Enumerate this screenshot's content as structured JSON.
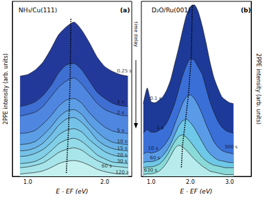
{
  "chart_data": [
    {
      "type": "line",
      "title": "NH₃/Cu(111)",
      "panel": "(a)",
      "x_label": "E - EF (eV)",
      "y_label": "2PPE intensity (arb. units)",
      "xlim": [
        0.8,
        2.35
      ],
      "xticks": [
        {
          "value": 1,
          "label": "1.0"
        },
        {
          "value": 2,
          "label": "2.0"
        }
      ],
      "ylim": [
        0,
        110
      ],
      "tick_labels": "x",
      "grid": false,
      "x": [
        0.9,
        1.0,
        1.1,
        1.2,
        1.3,
        1.4,
        1.5,
        1.6,
        1.7,
        1.8,
        1.9,
        2.0,
        2.1,
        2.2,
        2.3
      ],
      "series": [
        {
          "name": "0.25 s",
          "color": "#23399a",
          "values": [
            63,
            64,
            67,
            72,
            80,
            89,
            94,
            97,
            92,
            84,
            75,
            69,
            66,
            64,
            63
          ],
          "label_at": [
            2.15,
            66
          ]
        },
        {
          "name": "1 s",
          "color": "#3f6fd2",
          "values": [
            44,
            45,
            47,
            51,
            57,
            65,
            70,
            71,
            67,
            60,
            53,
            49,
            46,
            44.5,
            44
          ],
          "label_at": [
            2.15,
            47
          ]
        },
        {
          "name": "2 s",
          "color": "#4f86e0",
          "values": [
            38,
            39,
            40.5,
            44,
            50,
            56,
            60,
            62,
            58,
            52,
            46,
            42,
            40,
            38.5,
            38
          ],
          "label_at": [
            2.15,
            40
          ]
        },
        {
          "name": "5 s",
          "color": "#5c9ee6",
          "values": [
            27,
            27.5,
            29,
            33,
            38,
            44,
            48,
            49,
            46,
            40,
            35,
            31,
            28.5,
            27.5,
            27
          ],
          "label_at": [
            2.15,
            29
          ]
        },
        {
          "name": "10 s",
          "color": "#68b2e8",
          "values": [
            20,
            20.5,
            22,
            26,
            31,
            37,
            41,
            42,
            39,
            33,
            28,
            24,
            21.5,
            20.5,
            20
          ],
          "label_at": [
            2.15,
            22
          ]
        },
        {
          "name": "15 s",
          "color": "#74c2e8",
          "values": [
            16,
            16.5,
            18,
            21,
            26,
            32,
            36,
            37,
            34,
            29,
            23,
            19.5,
            17.5,
            16.5,
            16
          ],
          "label_at": [
            2.15,
            17.5
          ]
        },
        {
          "name": "20 s",
          "color": "#82cfe8",
          "values": [
            12.5,
            13,
            14.5,
            17,
            21,
            26,
            29,
            30,
            28,
            23,
            19,
            15.5,
            13.5,
            12.5,
            12.5
          ],
          "label_at": [
            2.15,
            13.5
          ]
        },
        {
          "name": "30 s",
          "color": "#93dbe8",
          "values": [
            8,
            8.5,
            9.5,
            12,
            16,
            20.5,
            23,
            24,
            22,
            18,
            13.5,
            11,
            9,
            8.5,
            8
          ],
          "label_at": [
            2.15,
            9.5
          ]
        },
        {
          "name": "60 s",
          "color": "#a8e5ea",
          "values": [
            5.5,
            6,
            7,
            8.5,
            11.5,
            15,
            17,
            18,
            16.5,
            13,
            10,
            8,
            6.5,
            6,
            5.5
          ],
          "label_at": [
            1.95,
            6.5
          ]
        },
        {
          "name": "120 s",
          "color": "#c4f0f0",
          "values": [
            1.5,
            2,
            2.5,
            3.5,
            5.5,
            8,
            9.5,
            10,
            9,
            7,
            4.5,
            3,
            2,
            1.5,
            1.5
          ],
          "label_at": [
            2.13,
            2.5
          ]
        }
      ],
      "guide": {
        "x": [
          1.56,
          1.55,
          1.53,
          1.5
        ],
        "y": [
          99,
          60,
          30,
          2
        ],
        "line_style": "dotted",
        "color": "#000000"
      }
    },
    {
      "type": "line",
      "title": "D₂O/Ru(001)",
      "panel": "(b)",
      "x_label": "E - EF (eV)",
      "y_label": "2PPE intensity (arb. units)",
      "annotations": [
        {
          "text": "time delay"
        }
      ],
      "xlim": [
        0.75,
        3.55
      ],
      "xticks": [
        {
          "value": 1,
          "label": "1.0"
        },
        {
          "value": 2,
          "label": "2.0"
        },
        {
          "value": 3,
          "label": "3.0"
        }
      ],
      "ylim": [
        0,
        101
      ],
      "tick_labels": "x",
      "grid": false,
      "x": [
        0.8,
        0.9,
        1.0,
        1.1,
        1.2,
        1.3,
        1.4,
        1.5,
        1.6,
        1.7,
        1.8,
        1.9,
        2.0,
        2.1,
        2.2,
        2.3,
        2.4,
        2.5,
        2.6,
        2.7,
        2.8,
        2.9,
        3.0,
        3.1
      ],
      "series": [
        {
          "name": "0.1 s",
          "color": "#1d3a98",
          "values": [
            42,
            51,
            43,
            42.5,
            44,
            46,
            50,
            56,
            65,
            74,
            84,
            93,
            98,
            99,
            95,
            87,
            77,
            66,
            57,
            51,
            46,
            44,
            42.5,
            42
          ],
          "label_at": [
            0.95,
            45
          ]
        },
        {
          "name": "1 s",
          "color": "#3a6fd8",
          "values": [
            25,
            27,
            25.5,
            25.5,
            26.5,
            28,
            31,
            36,
            42,
            50,
            58,
            64,
            68,
            67,
            63,
            59,
            51,
            43,
            37,
            32,
            28.5,
            26.5,
            25.5,
            25
          ],
          "label_at": [
            1.12,
            28
          ]
        },
        {
          "name": "10 s",
          "color": "#5a9be8",
          "values": [
            13,
            14,
            13.5,
            14,
            15,
            17,
            20,
            24,
            30,
            36,
            42,
            46,
            47,
            45,
            41,
            36,
            30,
            25,
            20,
            17,
            15,
            14,
            13.5,
            13
          ],
          "label_at": [
            0.9,
            16
          ]
        },
        {
          "name": "60 s",
          "color": "#6ec8e8",
          "values": [
            8,
            8.5,
            8.5,
            9,
            10,
            12,
            15,
            19,
            24,
            29,
            32,
            33,
            31,
            28,
            24,
            20,
            16,
            13,
            11,
            9.5,
            9,
            8.5,
            8,
            8
          ],
          "label_at": [
            0.95,
            10.5
          ]
        },
        {
          "name": "300 s",
          "color": "#8adada",
          "values": [
            5,
            5.5,
            5.5,
            6,
            7,
            9,
            12,
            16,
            20,
            23,
            24,
            22.5,
            20,
            17,
            14,
            11,
            9,
            7.5,
            6.5,
            6,
            5.5,
            5,
            5,
            5
          ],
          "label_at": [
            2.85,
            17
          ]
        },
        {
          "name": "630 s",
          "color": "#b8ecec",
          "values": [
            1,
            1.5,
            1.5,
            2,
            3,
            5,
            8,
            12,
            16,
            18,
            17,
            15,
            12.5,
            10,
            8,
            6,
            4.5,
            3,
            2.5,
            2,
            1.5,
            1,
            1,
            1
          ],
          "label_at": [
            0.8,
            3.5
          ]
        }
      ],
      "guide": {
        "x": [
          2.05,
          2.02,
          1.95,
          1.88,
          1.8,
          1.77
        ],
        "y": [
          99,
          68,
          47,
          33,
          18,
          5
        ],
        "line_style": "dotted",
        "color": "#000000"
      }
    }
  ]
}
